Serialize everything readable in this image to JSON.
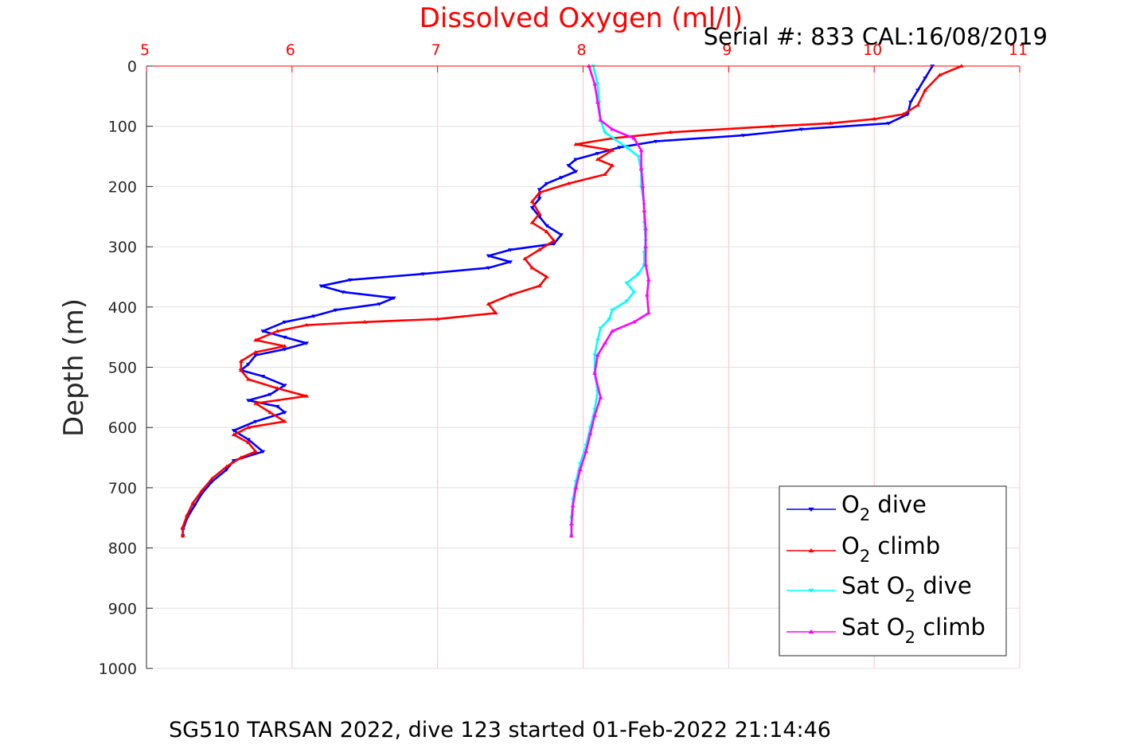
{
  "chart_data": {
    "type": "line",
    "title": "Dissolved Oxygen (ml/l)",
    "subtitle": "Serial #: 833  CAL:16/08/2019",
    "footer": "SG510 TARSAN 2022, dive 123 started 01-Feb-2022 21:14:46",
    "xlabel": "",
    "ylabel": "Depth (m)",
    "xlim": [
      5,
      11
    ],
    "ylim": [
      0,
      1000
    ],
    "y_reversed": true,
    "x_axis_position": "top",
    "xticks": [
      "5",
      "6",
      "7",
      "8",
      "9",
      "10",
      "11"
    ],
    "yticks": [
      "0",
      "100",
      "200",
      "300",
      "400",
      "500",
      "600",
      "700",
      "800",
      "900",
      "1000"
    ],
    "grid": true,
    "legend_position": "bottom-right",
    "colors": {
      "title": "#ff0000",
      "xtick": "#ff0000",
      "grid_x": "#ffc0cb",
      "grid_y": "#e0e0e0",
      "axis": "#262626"
    },
    "series": [
      {
        "name": "O2 dive",
        "color": "#0000ff",
        "marker": "triangle-down",
        "points": [
          [
            10.4,
            0
          ],
          [
            10.35,
            20
          ],
          [
            10.3,
            40
          ],
          [
            10.25,
            60
          ],
          [
            10.23,
            80
          ],
          [
            10.1,
            95
          ],
          [
            9.5,
            105
          ],
          [
            9.1,
            115
          ],
          [
            8.5,
            125
          ],
          [
            8.25,
            135
          ],
          [
            8.1,
            145
          ],
          [
            7.95,
            155
          ],
          [
            7.9,
            165
          ],
          [
            7.95,
            175
          ],
          [
            7.85,
            185
          ],
          [
            7.75,
            195
          ],
          [
            7.7,
            205
          ],
          [
            7.7,
            220
          ],
          [
            7.65,
            235
          ],
          [
            7.7,
            250
          ],
          [
            7.75,
            265
          ],
          [
            7.85,
            280
          ],
          [
            7.8,
            295
          ],
          [
            7.5,
            305
          ],
          [
            7.35,
            315
          ],
          [
            7.5,
            325
          ],
          [
            7.35,
            335
          ],
          [
            6.9,
            345
          ],
          [
            6.4,
            355
          ],
          [
            6.2,
            365
          ],
          [
            6.35,
            375
          ],
          [
            6.7,
            385
          ],
          [
            6.6,
            395
          ],
          [
            6.3,
            405
          ],
          [
            6.15,
            415
          ],
          [
            5.95,
            425
          ],
          [
            5.8,
            440
          ],
          [
            5.95,
            450
          ],
          [
            6.1,
            460
          ],
          [
            5.95,
            470
          ],
          [
            5.75,
            480
          ],
          [
            5.7,
            495
          ],
          [
            5.65,
            505
          ],
          [
            5.8,
            515
          ],
          [
            5.95,
            530
          ],
          [
            5.85,
            545
          ],
          [
            5.7,
            555
          ],
          [
            5.9,
            565
          ],
          [
            5.95,
            575
          ],
          [
            5.75,
            590
          ],
          [
            5.6,
            605
          ],
          [
            5.7,
            620
          ],
          [
            5.8,
            640
          ],
          [
            5.6,
            655
          ],
          [
            5.55,
            670
          ],
          [
            5.45,
            690
          ],
          [
            5.38,
            710
          ],
          [
            5.33,
            730
          ],
          [
            5.28,
            750
          ],
          [
            5.25,
            770
          ],
          [
            5.25,
            780
          ]
        ]
      },
      {
        "name": "O2 climb",
        "color": "#ff0000",
        "marker": "triangle-up",
        "points": [
          [
            10.6,
            0
          ],
          [
            10.45,
            15
          ],
          [
            10.35,
            40
          ],
          [
            10.3,
            65
          ],
          [
            10.2,
            80
          ],
          [
            10.0,
            88
          ],
          [
            9.7,
            95
          ],
          [
            9.3,
            100
          ],
          [
            8.6,
            110
          ],
          [
            8.2,
            120
          ],
          [
            7.95,
            130
          ],
          [
            8.2,
            140
          ],
          [
            8.1,
            155
          ],
          [
            8.2,
            165
          ],
          [
            8.15,
            180
          ],
          [
            7.9,
            195
          ],
          [
            7.7,
            210
          ],
          [
            7.65,
            225
          ],
          [
            7.7,
            245
          ],
          [
            7.65,
            260
          ],
          [
            7.75,
            275
          ],
          [
            7.8,
            290
          ],
          [
            7.7,
            305
          ],
          [
            7.6,
            320
          ],
          [
            7.65,
            335
          ],
          [
            7.75,
            350
          ],
          [
            7.7,
            365
          ],
          [
            7.5,
            380
          ],
          [
            7.35,
            395
          ],
          [
            7.4,
            410
          ],
          [
            7.0,
            420
          ],
          [
            6.5,
            425
          ],
          [
            6.1,
            430
          ],
          [
            5.9,
            440
          ],
          [
            5.75,
            455
          ],
          [
            5.95,
            465
          ],
          [
            5.75,
            475
          ],
          [
            5.65,
            490
          ],
          [
            5.65,
            505
          ],
          [
            5.7,
            520
          ],
          [
            5.9,
            535
          ],
          [
            6.1,
            548
          ],
          [
            5.75,
            560
          ],
          [
            5.85,
            575
          ],
          [
            5.95,
            590
          ],
          [
            5.7,
            600
          ],
          [
            5.6,
            612
          ],
          [
            5.7,
            625
          ],
          [
            5.75,
            640
          ],
          [
            5.65,
            650
          ],
          [
            5.55,
            665
          ],
          [
            5.45,
            685
          ],
          [
            5.38,
            705
          ],
          [
            5.32,
            725
          ],
          [
            5.28,
            745
          ],
          [
            5.25,
            765
          ],
          [
            5.25,
            780
          ]
        ]
      },
      {
        "name": "Sat O2 dive",
        "color": "#00ffff",
        "marker": "triangle-down",
        "points": [
          [
            8.07,
            0
          ],
          [
            8.1,
            30
          ],
          [
            8.11,
            60
          ],
          [
            8.12,
            90
          ],
          [
            8.15,
            110
          ],
          [
            8.3,
            135
          ],
          [
            8.38,
            150
          ],
          [
            8.4,
            175
          ],
          [
            8.4,
            200
          ],
          [
            8.42,
            230
          ],
          [
            8.42,
            260
          ],
          [
            8.43,
            290
          ],
          [
            8.42,
            310
          ],
          [
            8.42,
            330
          ],
          [
            8.38,
            345
          ],
          [
            8.3,
            360
          ],
          [
            8.35,
            375
          ],
          [
            8.3,
            390
          ],
          [
            8.2,
            405
          ],
          [
            8.18,
            420
          ],
          [
            8.12,
            435
          ],
          [
            8.1,
            455
          ],
          [
            8.08,
            480
          ],
          [
            8.08,
            510
          ],
          [
            8.1,
            540
          ],
          [
            8.08,
            570
          ],
          [
            8.05,
            600
          ],
          [
            8.02,
            630
          ],
          [
            7.98,
            660
          ],
          [
            7.95,
            690
          ],
          [
            7.93,
            720
          ],
          [
            7.92,
            750
          ],
          [
            7.92,
            780
          ]
        ]
      },
      {
        "name": "Sat O2 climb",
        "color": "#ff00ff",
        "marker": "triangle-up",
        "points": [
          [
            8.04,
            0
          ],
          [
            8.08,
            30
          ],
          [
            8.1,
            60
          ],
          [
            8.12,
            90
          ],
          [
            8.2,
            105
          ],
          [
            8.35,
            120
          ],
          [
            8.4,
            140
          ],
          [
            8.4,
            170
          ],
          [
            8.41,
            200
          ],
          [
            8.42,
            240
          ],
          [
            8.43,
            270
          ],
          [
            8.43,
            300
          ],
          [
            8.43,
            330
          ],
          [
            8.45,
            355
          ],
          [
            8.44,
            380
          ],
          [
            8.45,
            410
          ],
          [
            8.35,
            425
          ],
          [
            8.2,
            440
          ],
          [
            8.15,
            460
          ],
          [
            8.1,
            480
          ],
          [
            8.08,
            510
          ],
          [
            8.12,
            550
          ],
          [
            8.08,
            580
          ],
          [
            8.05,
            610
          ],
          [
            8.02,
            640
          ],
          [
            7.98,
            670
          ],
          [
            7.95,
            700
          ],
          [
            7.93,
            730
          ],
          [
            7.92,
            760
          ],
          [
            7.92,
            780
          ]
        ]
      }
    ]
  }
}
